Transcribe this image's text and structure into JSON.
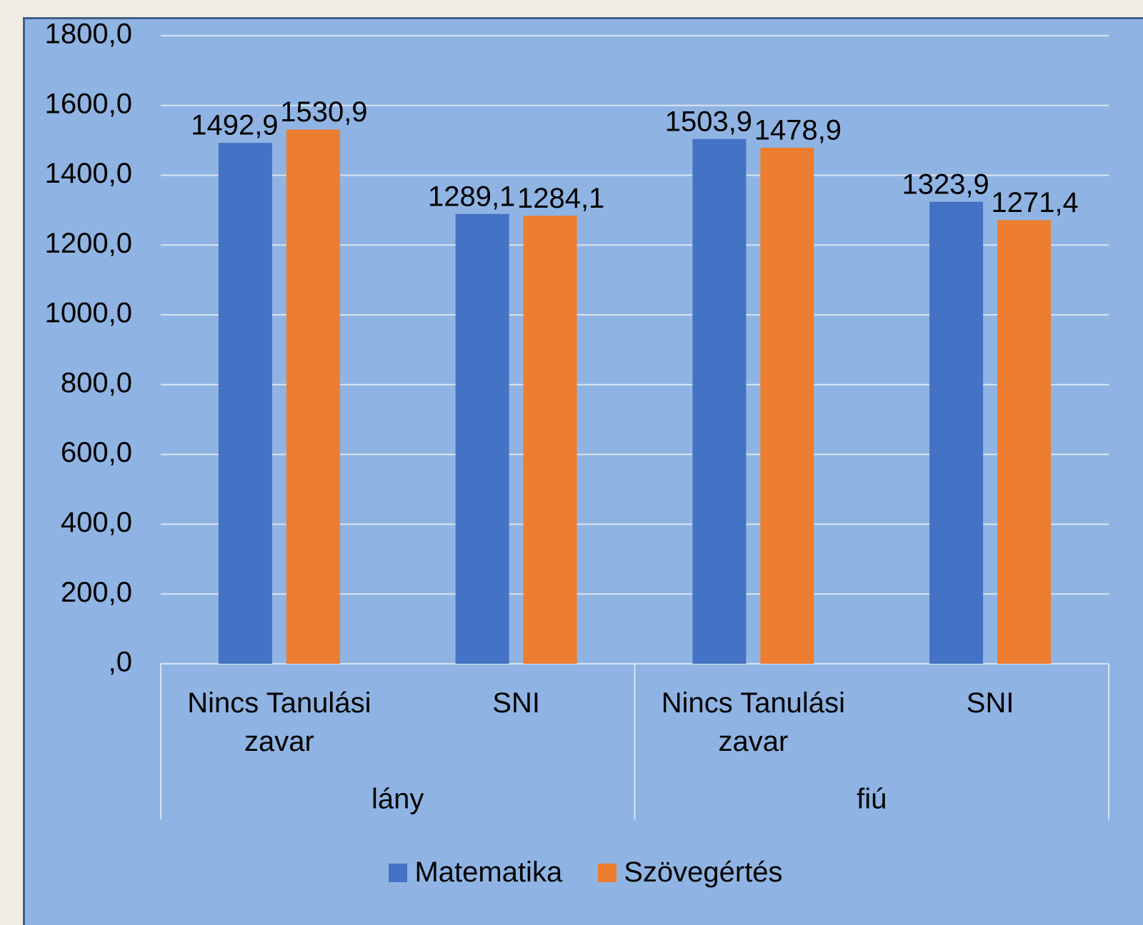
{
  "chart_data": {
    "type": "bar",
    "groups": [
      {
        "name": "lány",
        "categories": [
          "Nincs Tanulási zavar",
          "SNI"
        ]
      },
      {
        "name": "fiú",
        "categories": [
          "Nincs Tanulási zavar",
          "SNI"
        ]
      }
    ],
    "series": [
      {
        "name": "Matematika",
        "color": "#4472c4",
        "values": [
          1492.9,
          1289.1,
          1503.9,
          1323.9
        ],
        "value_labels": [
          "1492,9",
          "1289,1",
          "1503,9",
          "1323,9"
        ]
      },
      {
        "name": "Szövegértés",
        "color": "#ed7d31",
        "values": [
          1530.9,
          1284.1,
          1478.9,
          1271.4
        ],
        "value_labels": [
          "1530,9",
          "1284,1",
          "1478,9",
          "1271,4"
        ]
      }
    ],
    "ylim": [
      0,
      1800
    ],
    "yticks": [
      {
        "value": 0,
        "label": ",0"
      },
      {
        "value": 200,
        "label": "200,0"
      },
      {
        "value": 400,
        "label": "400,0"
      },
      {
        "value": 600,
        "label": "600,0"
      },
      {
        "value": 800,
        "label": "800,0"
      },
      {
        "value": 1000,
        "label": "1000,0"
      },
      {
        "value": 1200,
        "label": "1200,0"
      },
      {
        "value": 1400,
        "label": "1400,0"
      },
      {
        "value": 1600,
        "label": "1600,0"
      },
      {
        "value": 1800,
        "label": "1800,0"
      }
    ],
    "grid": true,
    "legend": "bottom"
  }
}
